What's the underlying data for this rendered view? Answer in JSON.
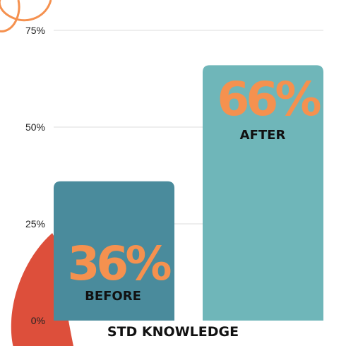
{
  "colors": {
    "before_bar": "#4a8b9c",
    "after_bar": "#6fb6b9",
    "accent_orange": "#f5914f",
    "blob_red": "#dd4f3b",
    "grid": "#dedede"
  },
  "decorations": [
    "orange-swirl-icon",
    "red-blob-shape"
  ],
  "chart_data": {
    "type": "bar",
    "categories": [
      "BEFORE",
      "AFTER"
    ],
    "values": [
      36,
      66
    ],
    "value_labels": [
      "36%",
      "66%"
    ],
    "xlabel": "STD KNOWLEDGE",
    "ylabel": "",
    "ylim": [
      0,
      75
    ],
    "yticks": [
      0,
      25,
      50,
      75
    ],
    "ytick_labels": [
      "0%",
      "25%",
      "50%",
      "75%"
    ],
    "grid": true,
    "legend": "none"
  }
}
